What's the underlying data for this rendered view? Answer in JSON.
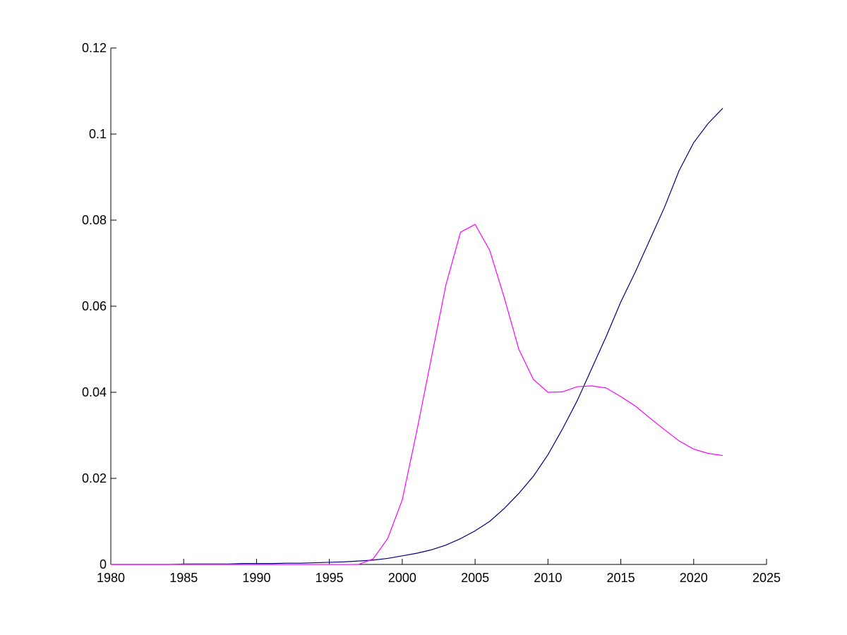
{
  "chart_data": {
    "type": "line",
    "x": [
      1980,
      1981,
      1982,
      1983,
      1984,
      1985,
      1986,
      1987,
      1988,
      1989,
      1990,
      1991,
      1992,
      1993,
      1994,
      1995,
      1996,
      1997,
      1998,
      1999,
      2000,
      2001,
      2002,
      2003,
      2004,
      2005,
      2006,
      2007,
      2008,
      2009,
      2010,
      2011,
      2012,
      2013,
      2014,
      2015,
      2016,
      2017,
      2018,
      2019,
      2020,
      2021,
      2022
    ],
    "series": [
      {
        "color": "#000080",
        "values": [
          0,
          0,
          0,
          0,
          0,
          0.0001,
          0.0001,
          0.0001,
          0.0001,
          0.0002,
          0.0002,
          0.0002,
          0.0003,
          0.0003,
          0.0004,
          0.0005,
          0.0006,
          0.0008,
          0.001,
          0.0014,
          0.002,
          0.0026,
          0.0034,
          0.0045,
          0.006,
          0.0078,
          0.01,
          0.013,
          0.0165,
          0.0205,
          0.0255,
          0.0315,
          0.038,
          0.0455,
          0.053,
          0.061,
          0.068,
          0.0755,
          0.083,
          0.0915,
          0.098,
          0.1025,
          0.106
        ]
      },
      {
        "color": "#ff00ff",
        "values": [
          0,
          0,
          0,
          0,
          0,
          0,
          0,
          0,
          0,
          0,
          0,
          0,
          0,
          0,
          0,
          0,
          0,
          0,
          0.0013,
          0.006,
          0.015,
          0.031,
          0.048,
          0.065,
          0.0772,
          0.079,
          0.073,
          0.062,
          0.05,
          0.043,
          0.04,
          0.0401,
          0.0413,
          0.0415,
          0.041,
          0.039,
          0.0368,
          0.034,
          0.0313,
          0.0287,
          0.0268,
          0.0258,
          0.0253
        ]
      }
    ],
    "xlim": [
      1980,
      2025
    ],
    "xticks": [
      1980,
      1985,
      1990,
      1995,
      2000,
      2005,
      2010,
      2015,
      2020,
      2025
    ],
    "ylim": [
      0,
      0.12
    ],
    "yticks": [
      0,
      0.02,
      0.04,
      0.06,
      0.08,
      0.1,
      0.12
    ]
  }
}
